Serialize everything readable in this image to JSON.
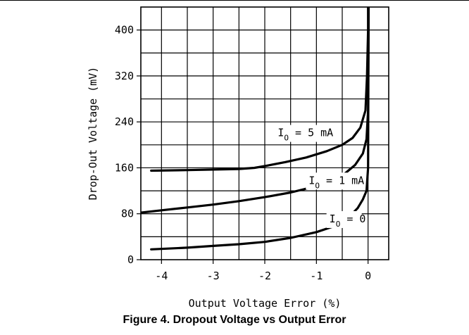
{
  "caption": "Figure 4. Dropout Voltage vs Output Error",
  "chart_data": {
    "type": "line",
    "title": "Figure 4. Dropout Voltage vs Output Error",
    "xlabel": "Output Voltage Error (%)",
    "ylabel": "Drop-Out Voltage (mV)",
    "xlim": [
      -4.4,
      0.4
    ],
    "ylim": [
      0,
      440
    ],
    "xticks": [
      -4,
      -3,
      -2,
      -1,
      0
    ],
    "xtick_labels": [
      "-4",
      "-3",
      "-2",
      "-1",
      "0"
    ],
    "yticks": [
      0,
      80,
      160,
      240,
      320,
      400
    ],
    "ytick_labels": [
      "0",
      "80",
      "160",
      "240",
      "320",
      "400"
    ],
    "grid": true,
    "series": [
      {
        "name": "I_O = 5 mA",
        "label_main": "I",
        "label_sub": "O",
        "label_rest": " = 5 mA",
        "x": [
          -4.2,
          -3.5,
          -3.0,
          -2.5,
          -2.2,
          -2.0,
          -1.6,
          -1.2,
          -0.8,
          -0.5,
          -0.3,
          -0.15,
          -0.05,
          -0.02,
          0.0,
          0.0
        ],
        "y": [
          155,
          156,
          157,
          158,
          160,
          163,
          170,
          178,
          189,
          200,
          212,
          230,
          260,
          320,
          400,
          440
        ]
      },
      {
        "name": "I_O = 1 mA",
        "label_main": "I",
        "label_sub": "O",
        "label_rest": " = 1 mA",
        "x": [
          -4.4,
          -4.0,
          -3.5,
          -3.0,
          -2.5,
          -2.0,
          -1.5,
          -1.0,
          -0.7,
          -0.45,
          -0.25,
          -0.1,
          -0.03,
          0.0,
          0.01
        ],
        "y": [
          82,
          86,
          91,
          96,
          102,
          109,
          117,
          128,
          137,
          150,
          165,
          185,
          210,
          260,
          440
        ]
      },
      {
        "name": "I_O = 0",
        "label_main": "I",
        "label_sub": "O",
        "label_rest": " = 0",
        "x": [
          -4.2,
          -3.5,
          -3.0,
          -2.5,
          -2.0,
          -1.5,
          -1.0,
          -0.7,
          -0.5,
          -0.35,
          -0.2,
          -0.1,
          -0.03,
          0.0,
          0.01
        ],
        "y": [
          18,
          21,
          24,
          27,
          31,
          38,
          48,
          57,
          66,
          76,
          90,
          105,
          120,
          160,
          440
        ]
      }
    ]
  }
}
